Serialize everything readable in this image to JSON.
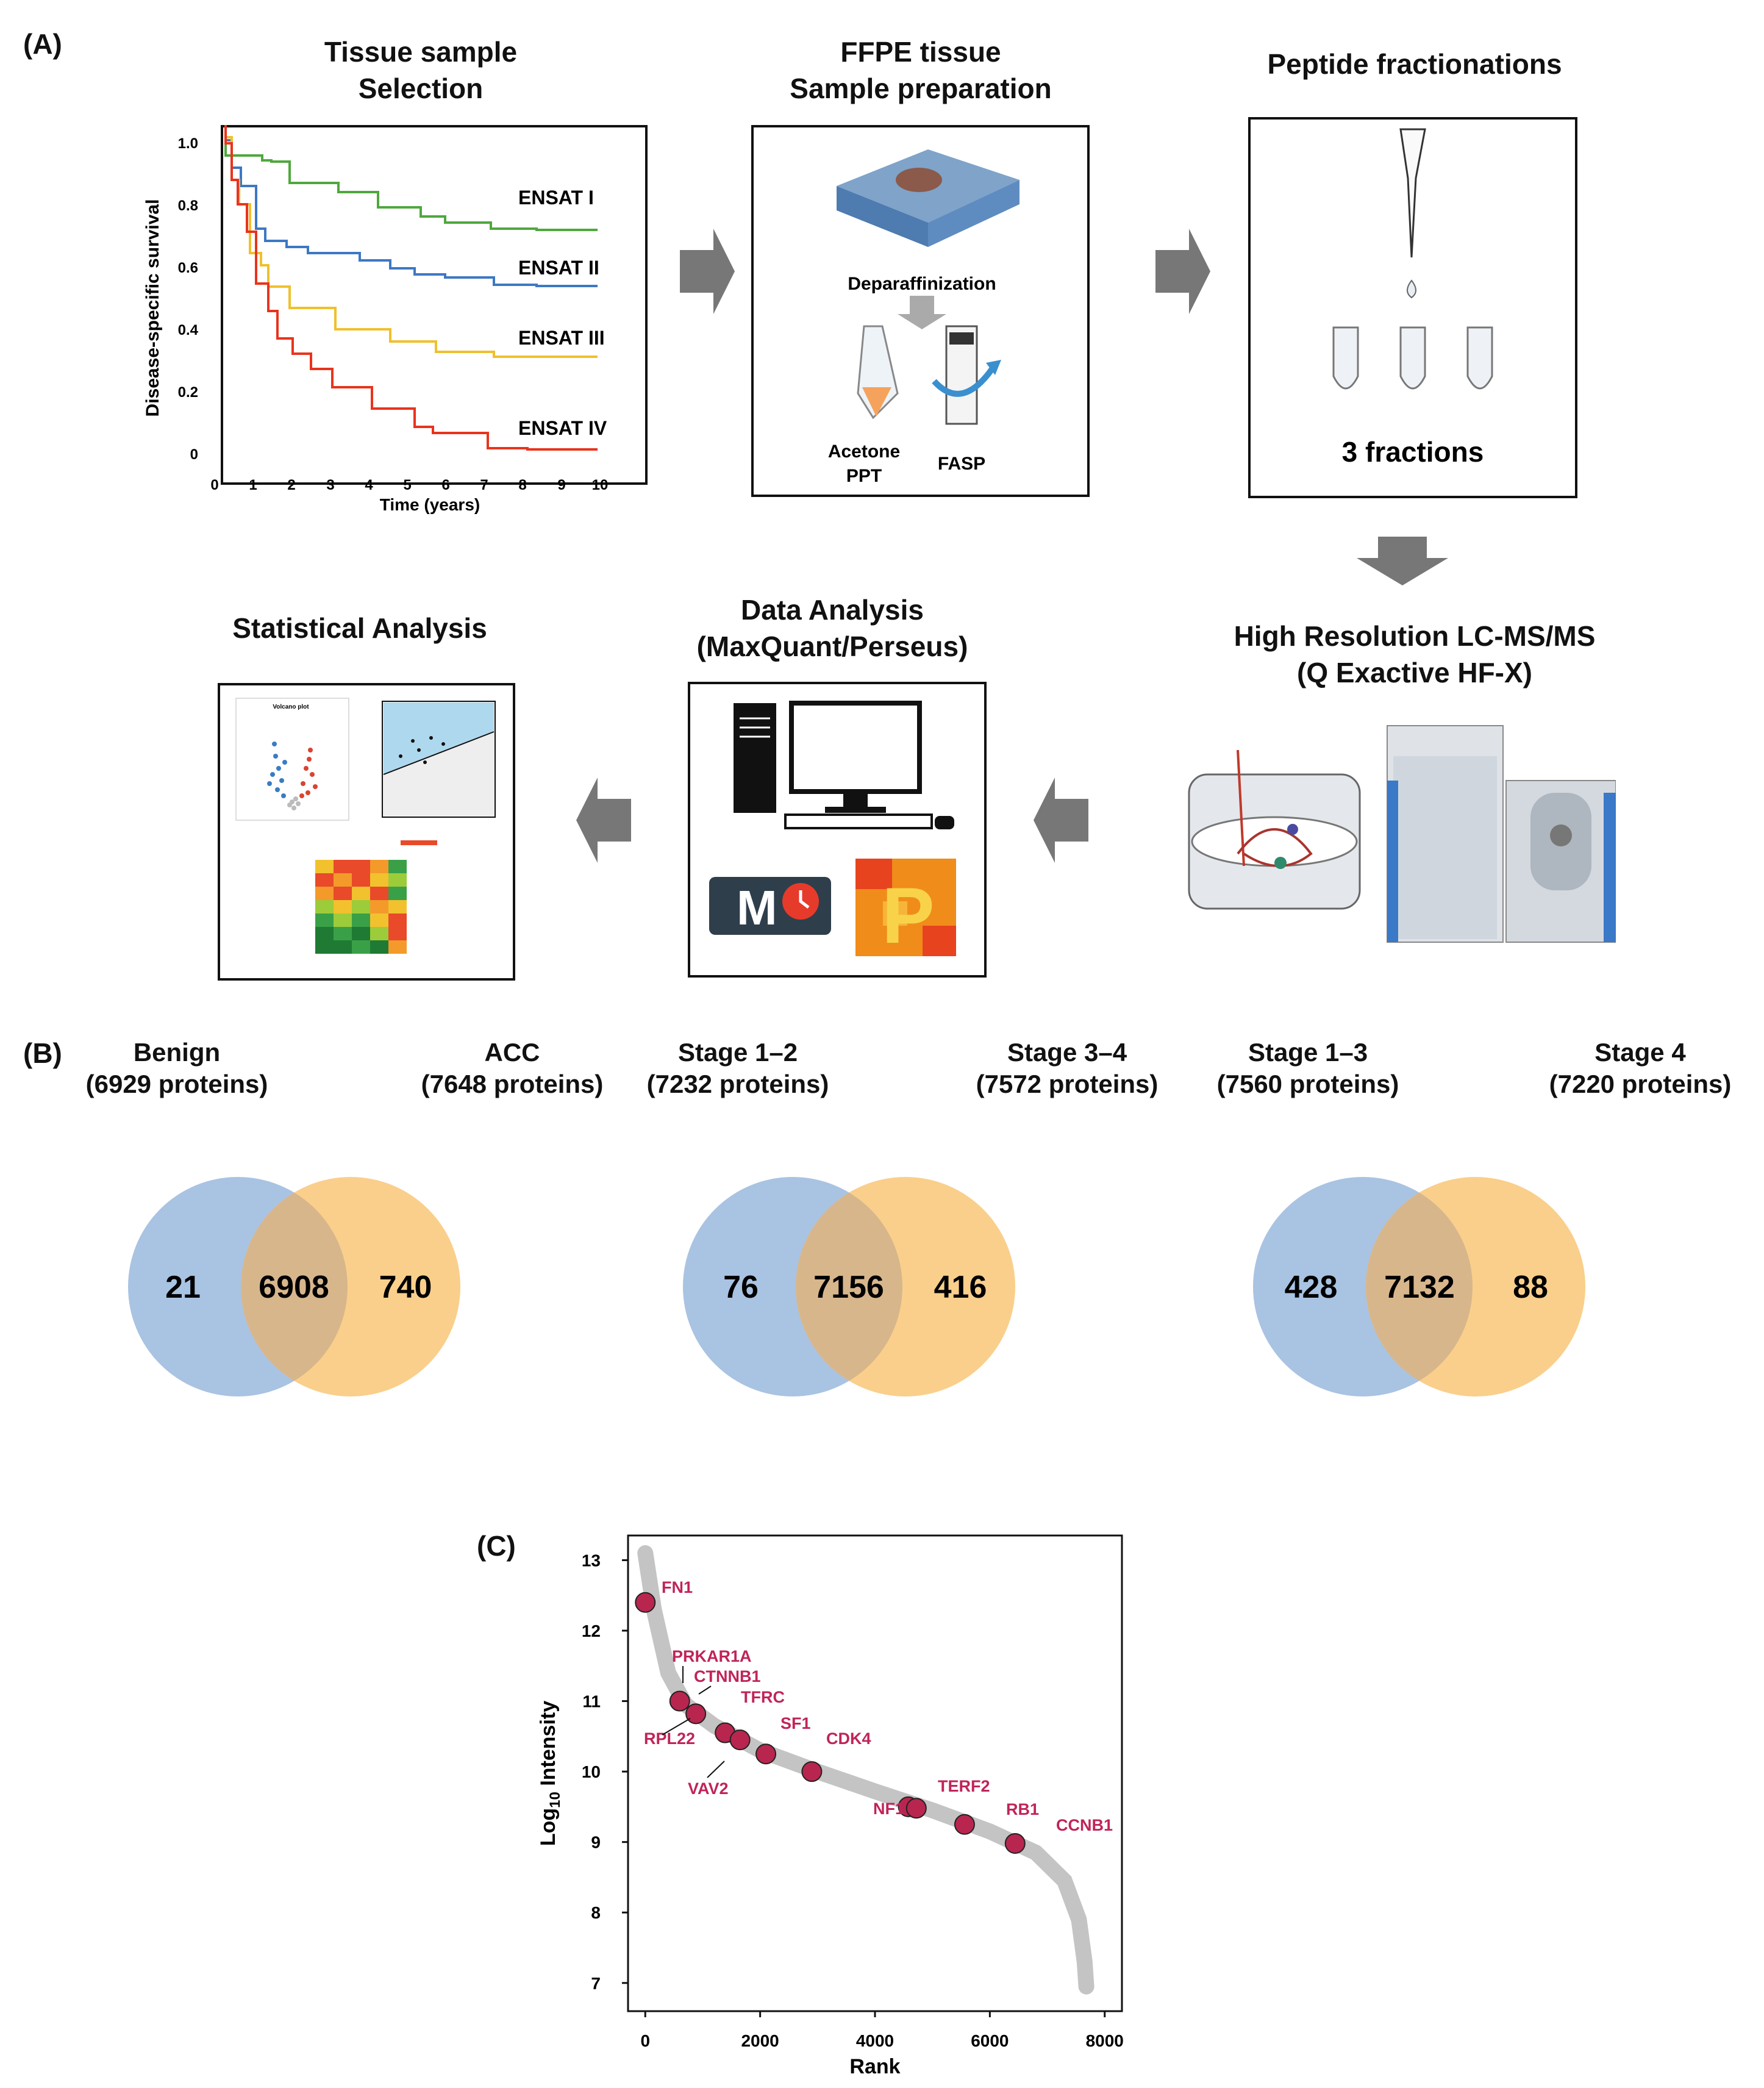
{
  "panel_a": {
    "letter": "(A)",
    "tissue_title_1": "Tissue sample",
    "tissue_title_2": "Selection",
    "ffpe_title_1": "FFPE tissue",
    "ffpe_title_2": "Sample preparation",
    "peptide_title": "Peptide fractionations",
    "lcms_title_1": "High Resolution  LC-MS/MS",
    "lcms_title_2": "(Q Exactive HF-X)",
    "data_title_1": "Data Analysis",
    "data_title_2": "(MaxQuant/Perseus)",
    "stats_title": "Statistical  Analysis",
    "deparaffinization": "Deparaffinization",
    "acetone": "Acetone",
    "ppt": "PPT",
    "fasp": "FASP",
    "fractions": "3 fractions",
    "volcano_label": "Volcano plot",
    "maxquant_letter": "M",
    "perseus_letter": "P",
    "survival": {
      "ylabel": "Disease-specific survival",
      "xlabel": "Time (years)",
      "y_ticks": [
        "1.0",
        "0.8",
        "0.6",
        "0.4",
        "0.2",
        "0"
      ],
      "x_ticks": [
        "0",
        "1",
        "2",
        "3",
        "4",
        "5",
        "6",
        "7",
        "8",
        "9",
        "10"
      ],
      "series": [
        {
          "name": "ENSAT I",
          "color": "#4fa83d"
        },
        {
          "name": "ENSAT II",
          "color": "#3d78c4"
        },
        {
          "name": "ENSAT III",
          "color": "#f0c02c"
        },
        {
          "name": "ENSAT IV",
          "color": "#e8341c"
        }
      ]
    }
  },
  "panel_b": {
    "letter": "(B)",
    "venns": [
      {
        "left_name": "Benign",
        "left_count": "(6929 proteins)",
        "right_name": "ACC",
        "right_count": "(7648 proteins)",
        "left_only": "21",
        "overlap": "6908",
        "right_only": "740"
      },
      {
        "left_name": "Stage 1–2",
        "left_count": "(7232 proteins)",
        "right_name": "Stage 3–4",
        "right_count": "(7572 proteins)",
        "left_only": "76",
        "overlap": "7156",
        "right_only": "416"
      },
      {
        "left_name": "Stage 1–3",
        "left_count": "(7560 proteins)",
        "right_name": "Stage 4",
        "right_count": "(7220 proteins)",
        "left_only": "428",
        "overlap": "7132",
        "right_only": "88"
      }
    ],
    "colors": {
      "left": "#a9c3e2",
      "right": "#f9cf8b",
      "overlap": "#d8b68c"
    }
  },
  "panel_c": {
    "letter": "(C)",
    "chart_data": {
      "type": "scatter",
      "title": "",
      "xlabel": "Rank",
      "ylabel": "Log10 Intensity",
      "xlim": [
        -300,
        8300
      ],
      "ylim": [
        6.6,
        13.35
      ],
      "x_ticks": [
        0,
        2000,
        4000,
        6000,
        8000
      ],
      "y_ticks": [
        7,
        8,
        9,
        10,
        11,
        12,
        13
      ],
      "highlight_color": "#b8264f",
      "label_color": "#c0245a",
      "curve_color": "#c4c4c4",
      "points": [
        {
          "label": "FN1",
          "x": 0,
          "y": 12.4
        },
        {
          "label": "PRKAR1A",
          "x": 600,
          "y": 11.0
        },
        {
          "label": "CTNNB1",
          "x": 880,
          "y": 10.82
        },
        {
          "label": "RPL22",
          "x": 1390,
          "y": 10.55
        },
        {
          "label": "TFRC",
          "x": 1650,
          "y": 10.45
        },
        {
          "label": "VAV2",
          "x": 2100,
          "y": 10.25
        },
        {
          "label": "SF1",
          "x": 2900,
          "y": 10.0
        },
        {
          "label": "CDK4",
          "x": 4580,
          "y": 9.5
        },
        {
          "label": "NF1",
          "x": 4720,
          "y": 9.48
        },
        {
          "label": "TERF2",
          "x": 5560,
          "y": 9.25
        },
        {
          "label": "RB1",
          "x": 6440,
          "y": 8.98
        },
        {
          "label": "CCNB1",
          "x": 6440,
          "y": 8.98
        }
      ]
    },
    "display_labels": [
      "FN1",
      "PRKAR1A",
      "CTNNB1",
      "TFRC",
      "RPL22",
      "SF1",
      "CDK4",
      "VAV2",
      "TERF2",
      "NF1",
      "RB1",
      "CCNB1"
    ],
    "xlabel": "Rank",
    "ylabel_main": "Log",
    "ylabel_sub": "10",
    "ylabel_rest": " Intensity"
  }
}
